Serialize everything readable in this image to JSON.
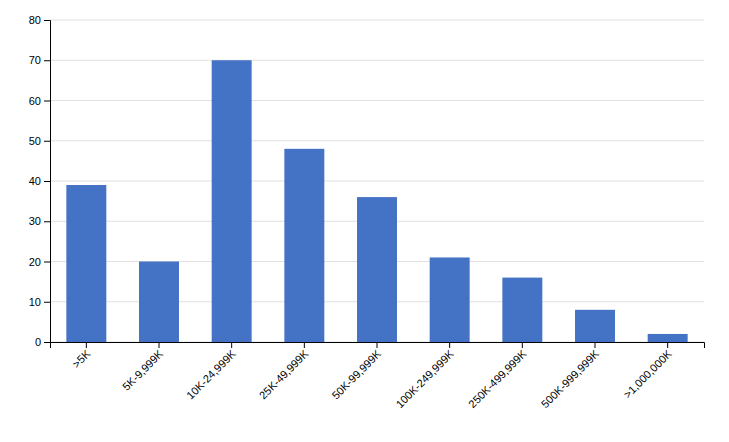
{
  "chart_data": {
    "type": "bar",
    "categories": [
      ">5K",
      "5K-9,999K",
      "10K-24,999K",
      "25K-49,999K",
      "50K-99,999K",
      "100K-249,999K",
      "250K-499,999K",
      "500K-999,999K",
      ">1,000,000K"
    ],
    "values": [
      39,
      20,
      70,
      48,
      36,
      21,
      16,
      8,
      2
    ],
    "color": "#4472C4",
    "ylim": [
      0,
      80
    ],
    "yticks": [
      0,
      10,
      20,
      30,
      40,
      50,
      60,
      70,
      80
    ],
    "grid": true
  }
}
